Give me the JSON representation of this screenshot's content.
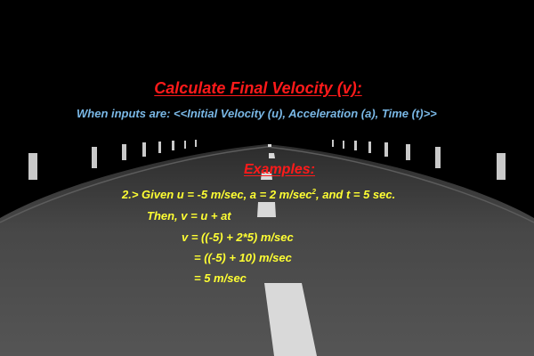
{
  "colors": {
    "title": "#ff1a1a",
    "subtitle": "#7ab8e6",
    "examples": "#ff1a1a",
    "formula": "#ffff33",
    "road": "#4e4e4e",
    "background": "#000000",
    "lane_marking": "#d8d8d8",
    "posts": "#cfcfcf"
  },
  "title": "Calculate Final Velocity (v):",
  "subtitle": "When inputs are: <<Initial Velocity (u), Acceleration (a), Time (t)>>",
  "examples_heading": "Examples:",
  "example": {
    "given_prefix": "2.> Given u = -5 m/sec, a = 2 m/sec",
    "given_sup": "2",
    "given_suffix": ", and t = 5 sec.",
    "then_line": "Then, v = u + at",
    "step_1": "v = ((-5) + 2*5) m/sec",
    "step_2": "= ((-5) + 10) m/sec",
    "step_3": "= 5 m/sec"
  },
  "scene": {
    "road_icon": "road-perspective-icon",
    "post_icon": "roadside-post-icon"
  }
}
